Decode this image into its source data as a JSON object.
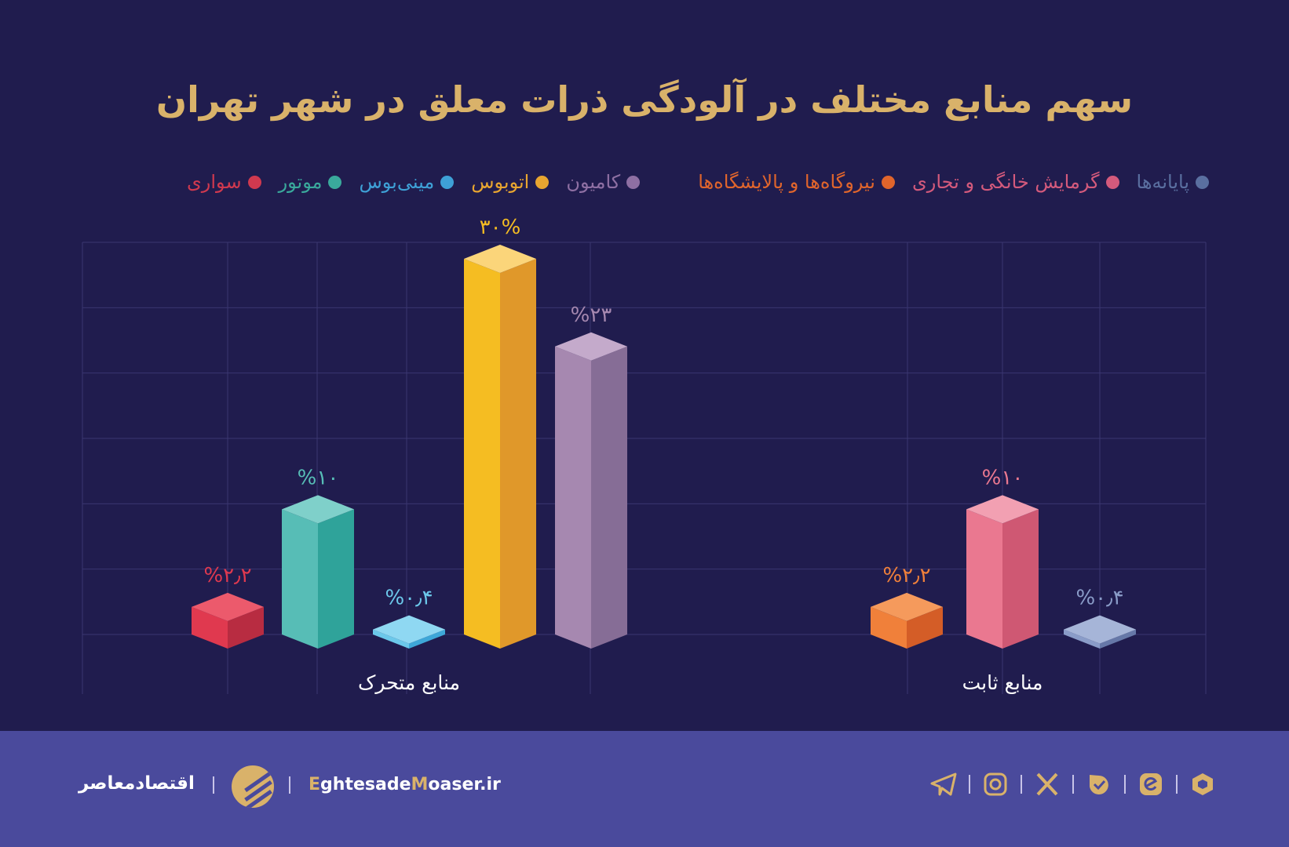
{
  "title": "سهم منابع مختلف در آلودگی ذرات معلق در شهر تهران",
  "legend": [
    {
      "label": "پایانه‌ها",
      "color": "#5a6fa0"
    },
    {
      "label": "گرمایش خانگی و تجاری",
      "color": "#d45a7c"
    },
    {
      "label": "نیروگاه‌ها و پالایشگاه‌ها",
      "color": "#e0652c"
    },
    {
      "label": "کامیون",
      "color": "#8e6fa3"
    },
    {
      "label": "اتوبوس",
      "color": "#e8a530"
    },
    {
      "label": "مینی‌بوس",
      "color": "#3ea0d6"
    },
    {
      "label": "موتور",
      "color": "#3aa99c"
    },
    {
      "label": "سواری",
      "color": "#d0394f"
    }
  ],
  "chart_data": {
    "type": "bar",
    "title": "سهم منابع مختلف در آلودگی ذرات معلق در شهر تهران",
    "unit": "%",
    "ylim": [
      0,
      30
    ],
    "grid": true,
    "legend_position": "top",
    "categories": [
      "منابع متحرک",
      "منابع ثابت"
    ],
    "bars": [
      {
        "series": "سواری",
        "category": "منابع متحرک",
        "value": 2.2,
        "label": "%۲٫۲",
        "color": "#e0394f",
        "dark": "#b82c41",
        "top": "#ec5a6c"
      },
      {
        "series": "موتور",
        "category": "منابع متحرک",
        "value": 10,
        "label": "%۱۰",
        "color": "#57bdb6",
        "dark": "#2fa39a",
        "top": "#7fd0ca"
      },
      {
        "series": "مینی‌بوس",
        "category": "منابع متحرک",
        "value": 0.4,
        "label": "%۰٫۴",
        "color": "#6cc8ea",
        "dark": "#3ea7d8",
        "top": "#8fd8f2"
      },
      {
        "series": "اتوبوس",
        "category": "منابع متحرک",
        "value": 30,
        "label": "۳۰%",
        "color": "#f5bd22",
        "dark": "#e0982a",
        "top": "#fbd57a"
      },
      {
        "series": "کامیون",
        "category": "منابع متحرک",
        "value": 23,
        "label": "%۲۳",
        "color": "#a688b0",
        "dark": "#866d96",
        "top": "#c4aacb"
      },
      {
        "series": "نیروگاه‌ها و پالایشگاه‌ها",
        "category": "منابع ثابت",
        "value": 2.2,
        "label": "%۲٫۲",
        "color": "#f0803a",
        "dark": "#d45d27",
        "top": "#f59a5c"
      },
      {
        "series": "گرمایش خانگی و تجاری",
        "category": "منابع ثابت",
        "value": 10,
        "label": "%۱۰",
        "color": "#ea7890",
        "dark": "#cf5873",
        "top": "#f2a0b2"
      },
      {
        "series": "پایانه‌ها",
        "category": "منابع ثابت",
        "value": 0.4,
        "label": "%۰٫۴",
        "color": "#8a9cc8",
        "dark": "#6678a8",
        "top": "#a6b5d8"
      }
    ]
  },
  "footer": {
    "brand": "اقتصادمعاصر",
    "site_prefix_e": "E",
    "site_mid": "ghtesade",
    "site_m": "M",
    "site_rest": "oaser.ir",
    "social_icons": [
      "telegram-icon",
      "instagram-icon",
      "x-icon",
      "bale-icon",
      "eitaa-icon",
      "rubika-icon"
    ]
  }
}
